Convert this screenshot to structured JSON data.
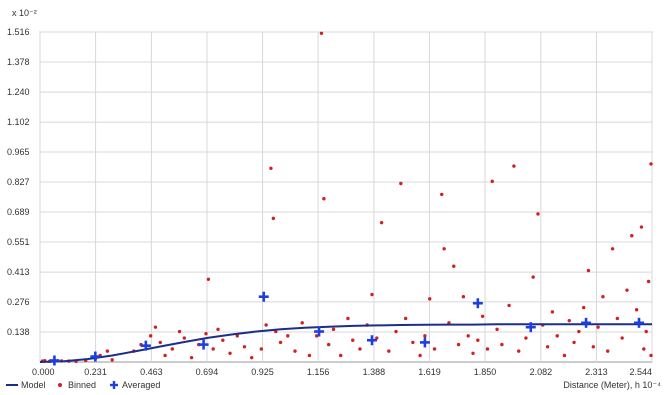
{
  "chart_data": {
    "type": "scatter",
    "y_scale_label": "x 10⁻²",
    "xlabel": "Distance (Meter), h  10⁻⁴",
    "xlim": [
      0,
      2.544
    ],
    "ylim": [
      0,
      1.516
    ],
    "x_ticks": [
      "0.000",
      "0.231",
      "0.463",
      "0.694",
      "0.925",
      "1.156",
      "1.388",
      "1.619",
      "1.850",
      "2.082",
      "2.313",
      "2.544"
    ],
    "y_ticks": [
      "0.138",
      "0.276",
      "0.413",
      "0.551",
      "0.689",
      "0.827",
      "0.965",
      "1.102",
      "1.240",
      "1.378",
      "1.516"
    ],
    "grid": true,
    "legend_position": "bottom-left",
    "colors": {
      "model": "#1b2f8a",
      "binned": "#d41f1f",
      "averaged": "#1d3fe0",
      "grid": "#d8d8d8"
    },
    "legend": [
      {
        "label": "Model",
        "symbol": "line"
      },
      {
        "label": "Binned",
        "symbol": "dot"
      },
      {
        "label": "Averaged",
        "symbol": "cross"
      }
    ],
    "series": [
      {
        "name": "Model",
        "kind": "line",
        "x": [
          0.0,
          0.1,
          0.2,
          0.3,
          0.4,
          0.5,
          0.6,
          0.7,
          0.8,
          0.9,
          1.0,
          1.1,
          1.2,
          1.3,
          1.4,
          1.5,
          1.6,
          1.7,
          1.8,
          1.9,
          2.0,
          2.1,
          2.2,
          2.3,
          2.4,
          2.544
        ],
        "y": [
          0.0,
          0.003,
          0.014,
          0.03,
          0.05,
          0.071,
          0.092,
          0.111,
          0.127,
          0.14,
          0.15,
          0.157,
          0.162,
          0.166,
          0.168,
          0.17,
          0.171,
          0.172,
          0.172,
          0.173,
          0.173,
          0.173,
          0.173,
          0.173,
          0.173,
          0.173
        ]
      },
      {
        "name": "Binned",
        "kind": "points",
        "points": [
          [
            0.01,
            0.004
          ],
          [
            0.02,
            0.006
          ],
          [
            0.04,
            0.003
          ],
          [
            0.06,
            0.008
          ],
          [
            0.09,
            0.005
          ],
          [
            0.12,
            0.004
          ],
          [
            0.15,
            0.003
          ],
          [
            0.19,
            0.007
          ],
          [
            0.23,
            0.015
          ],
          [
            0.25,
            0.03
          ],
          [
            0.28,
            0.05
          ],
          [
            0.3,
            0.01
          ],
          [
            0.39,
            0.05
          ],
          [
            0.42,
            0.08
          ],
          [
            0.46,
            0.12
          ],
          [
            0.48,
            0.16
          ],
          [
            0.5,
            0.09
          ],
          [
            0.52,
            0.03
          ],
          [
            0.55,
            0.06
          ],
          [
            0.58,
            0.14
          ],
          [
            0.6,
            0.11
          ],
          [
            0.63,
            0.02
          ],
          [
            0.66,
            0.08
          ],
          [
            0.69,
            0.13
          ],
          [
            0.7,
            0.38
          ],
          [
            0.72,
            0.06
          ],
          [
            0.74,
            0.15
          ],
          [
            0.76,
            0.1
          ],
          [
            0.79,
            0.04
          ],
          [
            0.82,
            0.12
          ],
          [
            0.85,
            0.07
          ],
          [
            0.88,
            0.02
          ],
          [
            0.92,
            0.06
          ],
          [
            0.94,
            0.17
          ],
          [
            0.96,
            0.89
          ],
          [
            0.97,
            0.66
          ],
          [
            0.98,
            0.14
          ],
          [
            1.0,
            0.09
          ],
          [
            1.03,
            0.12
          ],
          [
            1.06,
            0.05
          ],
          [
            1.09,
            0.18
          ],
          [
            1.12,
            0.03
          ],
          [
            1.15,
            0.12
          ],
          [
            1.17,
            1.51
          ],
          [
            1.18,
            0.75
          ],
          [
            1.2,
            0.08
          ],
          [
            1.22,
            0.15
          ],
          [
            1.25,
            0.03
          ],
          [
            1.28,
            0.2
          ],
          [
            1.3,
            0.1
          ],
          [
            1.33,
            0.06
          ],
          [
            1.36,
            0.17
          ],
          [
            1.38,
            0.31
          ],
          [
            1.4,
            0.11
          ],
          [
            1.42,
            0.64
          ],
          [
            1.45,
            0.05
          ],
          [
            1.48,
            0.14
          ],
          [
            1.5,
            0.82
          ],
          [
            1.52,
            0.2
          ],
          [
            1.55,
            0.09
          ],
          [
            1.58,
            0.03
          ],
          [
            1.6,
            0.12
          ],
          [
            1.62,
            0.29
          ],
          [
            1.64,
            0.06
          ],
          [
            1.67,
            0.77
          ],
          [
            1.68,
            0.52
          ],
          [
            1.7,
            0.18
          ],
          [
            1.72,
            0.44
          ],
          [
            1.74,
            0.08
          ],
          [
            1.76,
            0.3
          ],
          [
            1.78,
            0.12
          ],
          [
            1.8,
            0.04
          ],
          [
            1.82,
            0.1
          ],
          [
            1.84,
            0.21
          ],
          [
            1.86,
            0.06
          ],
          [
            1.88,
            0.83
          ],
          [
            1.9,
            0.15
          ],
          [
            1.92,
            0.08
          ],
          [
            1.95,
            0.26
          ],
          [
            1.97,
            0.9
          ],
          [
            1.99,
            0.05
          ],
          [
            2.02,
            0.11
          ],
          [
            2.05,
            0.39
          ],
          [
            2.07,
            0.68
          ],
          [
            2.09,
            0.17
          ],
          [
            2.11,
            0.07
          ],
          [
            2.13,
            0.23
          ],
          [
            2.15,
            0.12
          ],
          [
            2.18,
            0.03
          ],
          [
            2.2,
            0.19
          ],
          [
            2.22,
            0.09
          ],
          [
            2.24,
            0.14
          ],
          [
            2.26,
            0.25
          ],
          [
            2.28,
            0.42
          ],
          [
            2.3,
            0.07
          ],
          [
            2.32,
            0.16
          ],
          [
            2.34,
            0.3
          ],
          [
            2.36,
            0.05
          ],
          [
            2.38,
            0.52
          ],
          [
            2.4,
            0.2
          ],
          [
            2.42,
            0.11
          ],
          [
            2.44,
            0.33
          ],
          [
            2.46,
            0.58
          ],
          [
            2.48,
            0.24
          ],
          [
            2.5,
            0.62
          ],
          [
            2.51,
            0.06
          ],
          [
            2.52,
            0.14
          ],
          [
            2.53,
            0.37
          ],
          [
            2.54,
            0.91
          ],
          [
            2.54,
            0.03
          ]
        ]
      },
      {
        "name": "Averaged",
        "kind": "markers",
        "x": [
          0.06,
          0.23,
          0.44,
          0.68,
          0.93,
          1.16,
          1.38,
          1.6,
          1.82,
          2.04,
          2.27,
          2.49
        ],
        "y": [
          0.007,
          0.025,
          0.075,
          0.08,
          0.3,
          0.14,
          0.1,
          0.09,
          0.27,
          0.16,
          0.18,
          0.18
        ]
      }
    ]
  }
}
